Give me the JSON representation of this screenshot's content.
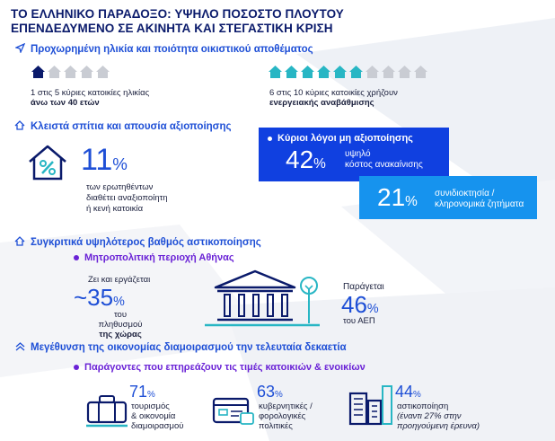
{
  "title": {
    "line1": "ΤΟ ΕΛΛΗΝΙΚΟ ΠΑΡΑΔΟΞΟ: ΥΨΗΛΟ ΠΟΣΟΣΤΟ ΠΛΟΥΤΟΥ",
    "line2": "ΕΠΕΝΔΕΔΥΜΕΝΟ ΣΕ ΑΚΙΝΗΤΑ ΚΑΙ ΣΤΕΓΑΣΤΙΚΗ ΚΡΙΣΗ"
  },
  "section1": {
    "heading": "Προχωρημένη ηλικία και ποιότητα οικιστικού αποθέματος",
    "left": {
      "filled": 1,
      "total": 5,
      "line1": "1 στις 5 κύριες κατοικίες ηλικίας",
      "line2": "άνω των 40 ετών"
    },
    "right": {
      "filled": 6,
      "total": 10,
      "line1": "6 στις 10 κύριες κατοικίες χρήζουν",
      "line2": "ενεργειακής αναβάθμισης"
    }
  },
  "section2": {
    "heading": "Κλειστά σπίτια και απουσία αξιοποίησης",
    "value": "11",
    "pct": "%",
    "desc1": "των ερωτηθέντων",
    "desc2": "διαθέτει αναξιοποίητη",
    "desc3": "ή κενή κατοικία",
    "box_title": "Κύριοι λόγοι μη αξιοποίησης",
    "reason1_value": "42",
    "reason1_pct": "%",
    "reason1_line1": "υψηλό",
    "reason1_line2": "κόστος ανακαίνισης",
    "reason2_value": "21",
    "reason2_pct": "%",
    "reason2_line1": "συνιδιοκτησία /",
    "reason2_line2": "κληρονομικά ζητήματα"
  },
  "section3": {
    "heading": "Συγκριτικά υψηλότερος βαθμός αστικοποίησης",
    "sub": "Μητροπολιτική περιοχή Αθήνας",
    "left_top": "Ζει και εργάζεται",
    "left_value": "~35",
    "left_pct": "%",
    "left_line1": "του πληθυσμού",
    "left_line2": "της χώρας",
    "right_top": "Παράγεται",
    "right_value": "46",
    "right_pct": "%",
    "right_line1": "του ΑΕΠ"
  },
  "section4": {
    "heading": "Μεγέθυνση της οικονομίας διαμοιρασμού την τελευταία δεκαετία",
    "sub": "Παράγοντες που επηρεάζουν τις τιμές κατοικιών & ενοικίων",
    "f1_value": "71",
    "f1_pct": "%",
    "f1_line1": "τουρισμός",
    "f1_line2": "& οικονομία",
    "f1_line3": "διαμοιρασμού",
    "f2_value": "63",
    "f2_pct": "%",
    "f2_line1": "κυβερνητικές /",
    "f2_line2": "φορολογικές",
    "f2_line3": "πολιτικές",
    "f3_value": "44",
    "f3_pct": "%",
    "f3_line1": "αστικοποίηση",
    "f3_line2": "(έναντι 27% στην",
    "f3_line3": "προηγούμενη έρευνα)"
  },
  "colors": {
    "navy": "#0a1a6b",
    "blue": "#1e4fd6",
    "cyan": "#28b6c4",
    "grey": "#c9ccd3",
    "purple": "#6a22d6",
    "box_blue": "#1040e0",
    "box_light": "#1693ee"
  }
}
